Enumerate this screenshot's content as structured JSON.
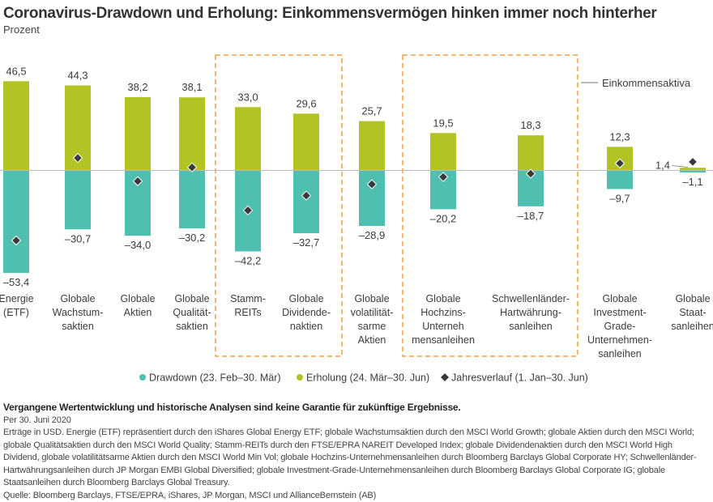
{
  "title": "Coronavirus-Drawdown und Erholung: Einkommensvermögen hinken immer noch hinterher",
  "subtitle": "Prozent",
  "chart_data": {
    "type": "bar",
    "ylabel": "Prozent",
    "ylim": [
      -56,
      50
    ],
    "categories": [
      [
        "Energie",
        "(ETF)"
      ],
      [
        "Globale",
        "Wachstum-",
        "saktien"
      ],
      [
        "Globale",
        "Aktien"
      ],
      [
        "Globale",
        "Qualität-",
        "saktien"
      ],
      [
        "Stamm-",
        "REITs"
      ],
      [
        "Globale",
        "Dividende-",
        "naktien"
      ],
      [
        "Globale",
        "volatilität-",
        "sarme",
        "Aktien"
      ],
      [
        "Globale",
        "Hochzins-",
        "Unterneh",
        "mensanleihen"
      ],
      [
        "Schwellenländer-",
        "Hartwährung-",
        "sanleihen"
      ],
      [
        "Globale",
        "Investment-",
        "Grade-",
        "Unternehmen-",
        "sanleihen"
      ],
      [
        "Globale",
        "Staat-",
        "sanleihen"
      ]
    ],
    "series": [
      {
        "name": "Drawdown (23. Feb–30. Mär)",
        "kind": "bar",
        "color": "#4fbfb0",
        "values": [
          -53.4,
          -30.7,
          -34.0,
          -30.2,
          -42.2,
          -32.7,
          -28.9,
          -20.2,
          -18.7,
          -9.7,
          -1.1
        ],
        "labels": [
          "–53,4",
          "–30,7",
          "–34,0",
          "–30,2",
          "–42,2",
          "–32,7",
          "–28,9",
          "–20,2",
          "–18,7",
          "–9,7",
          "–1,1"
        ]
      },
      {
        "name": "Erholung (24. Mär–30. Jun)",
        "kind": "bar",
        "color": "#b2c424",
        "values": [
          46.5,
          44.3,
          38.2,
          38.1,
          33.0,
          29.6,
          25.7,
          19.5,
          18.3,
          12.3,
          1.4
        ],
        "labels": [
          "46,5",
          "44,3",
          "38,2",
          "38,1",
          "33,0",
          "29,6",
          "25,7",
          "19,5",
          "18,3",
          "12,3",
          "1,4"
        ]
      },
      {
        "name": "Jahresverlauf (1. Jan–30. Jun)",
        "kind": "marker",
        "color": "#3a3a3a",
        "values": [
          -36.5,
          6.5,
          -5.6,
          1.6,
          -20.8,
          -13.1,
          -7.2,
          -3.4,
          -1.7,
          3.7,
          4.5
        ]
      }
    ],
    "highlight_groups": [
      {
        "categories": [
          4,
          5
        ],
        "color": "#f4a040"
      },
      {
        "categories": [
          7,
          8
        ],
        "color": "#f4a040",
        "label": "Einkommensaktiva"
      }
    ],
    "grid": false,
    "legend_position": "bottom"
  },
  "notes": {
    "disclaimer": "Vergangene Wertentwicklung und historische Analysen sind keine Garantie für zukünftige Ergebnisse.",
    "date": "Per 30. Juni 2020",
    "description": "Erträge in USD. Energie (ETF) repräsentiert durch den iShares Global Energy ETF; globale Wachstumsaktien durch den MSCI World Growth; globale Aktien durch den MSCI World; globale Qualitätsaktien durch den MSCI World Quality; Stamm-REITs durch den FTSE/EPRA NAREIT Developed Index; globale Dividendenaktien durch den MSCI World High Dividend, globale volatilitätsarme Aktien durch den MSCI World Min Vol; globale Hochzins-Unternehmensanleihen durch Bloomberg Barclays Global Corporate HY; Schwellenländer-Hartwährungsanleihen durch JP Morgan EMBI Global Diversified; globale Investment-Grade-Unternehmensanleihen durch Bloomberg Barclays Global Corporate IG; globale Staatsanleihen durch Bloomberg Barclays Global Treasury.",
    "source": "Quelle: Bloomberg Barclays, FTSE/EPRA, iShares, JP Morgan, MSCI und AllianceBernstein (AB)"
  }
}
